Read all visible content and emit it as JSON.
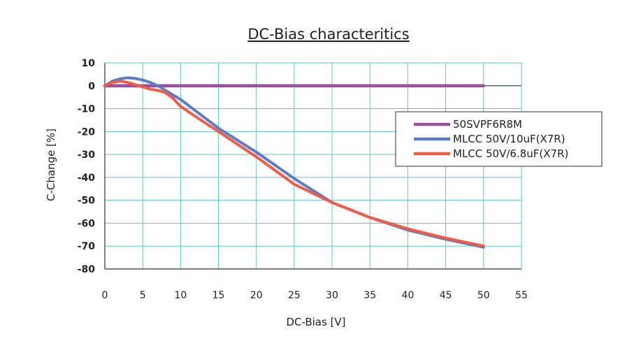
{
  "chart_data": {
    "type": "line",
    "title": "DC-Bias characteritics",
    "xlabel": "DC-Bias [V]",
    "ylabel": "C-Change [%]",
    "xlim": [
      0,
      55
    ],
    "ylim": [
      -80,
      10
    ],
    "xticks": [
      0,
      5,
      10,
      15,
      20,
      25,
      30,
      35,
      40,
      45,
      50,
      55
    ],
    "yticks": [
      10,
      0,
      -10,
      -20,
      -30,
      -40,
      -50,
      -60,
      -70,
      -80
    ],
    "grid": true,
    "legend_position": "right",
    "series": [
      {
        "name": "50SVPF6R8M",
        "color": "#9b4f9f",
        "x": [
          0,
          50
        ],
        "y": [
          0,
          0
        ]
      },
      {
        "name": "MLCC 50V/10uF(X7R)",
        "color": "#5a7dc4",
        "x": [
          0,
          1,
          2,
          3,
          4,
          5,
          6,
          7,
          8,
          9,
          10,
          12,
          15,
          20,
          25,
          30,
          35,
          40,
          45,
          50
        ],
        "y": [
          0,
          2,
          3,
          3.5,
          3.2,
          2.5,
          1.5,
          0,
          -2,
          -4,
          -6,
          -11,
          -18.5,
          -29,
          -40.5,
          -51,
          -57.5,
          -63,
          -67,
          -70.5
        ]
      },
      {
        "name": "MLCC 50V/6.8uF(X7R)",
        "color": "#ee5c4a",
        "x": [
          0,
          1,
          2,
          3,
          4,
          5,
          6,
          7,
          8,
          9,
          10,
          12,
          15,
          20,
          25,
          30,
          35,
          40,
          45,
          50
        ],
        "y": [
          0,
          1.5,
          2,
          1.5,
          0.5,
          -0.5,
          -1.5,
          -2,
          -3,
          -5.5,
          -9,
          -13.5,
          -20,
          -31,
          -43,
          -51,
          -57.5,
          -62.5,
          -66.5,
          -70
        ]
      }
    ]
  }
}
